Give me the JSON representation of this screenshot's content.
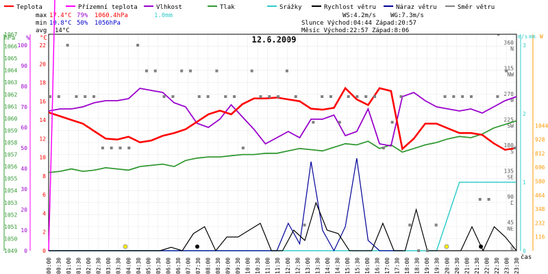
{
  "chart_data": {
    "type": "line",
    "title": "12.6.2009",
    "x_unit_label": "čas",
    "legend": [
      {
        "name": "Teplota",
        "color": "#ff0000"
      },
      {
        "name": "Přízemní teplota",
        "color": "#ff00ff"
      },
      {
        "name": "Vlhkost",
        "color": "#9900cc"
      },
      {
        "name": "Tlak",
        "color": "#339933"
      },
      {
        "name": "Srážky",
        "color": "#33cccc"
      },
      {
        "name": "Rychlost větru",
        "color": "#000000"
      },
      {
        "name": "Náraz větru",
        "color": "#000099"
      },
      {
        "name": "Směr větru",
        "color": "#808080"
      }
    ],
    "stats": {
      "max": {
        "label": "max",
        "temp": "17.4°C",
        "hum": "79%",
        "press": "1060.4hPa",
        "rain": "1.0mm"
      },
      "min": {
        "label": "min",
        "temp": "10.8°C",
        "hum": "50%",
        "press": "1056hPa"
      },
      "avg": {
        "label": "avg",
        "temp": "14°C"
      },
      "ws": "WS:4.2m/s",
      "wg": "WG:7.3m/s",
      "sun": "Slunce Východ:04:44  Západ:20:57",
      "moon": "Měsíc  Východ:22:57  Západ:8:06"
    },
    "axes": {
      "hPa": {
        "label": "hPa",
        "ticks": [
          "1049",
          "1050",
          "1051",
          "1052",
          "1053",
          "1054",
          "1055",
          "1056",
          "1057",
          "1058",
          "1059",
          "1060",
          "1061",
          "1062",
          "1063",
          "1064",
          "1065",
          "1066",
          "1067"
        ]
      },
      "percent": {
        "label": "%",
        "ticks": [
          "0",
          "10",
          "20",
          "30",
          "40",
          "50",
          "60",
          "70",
          "80",
          "90",
          "100"
        ]
      },
      "celsius": {
        "label": "°C",
        "ticks": [
          "0",
          "2",
          "4",
          "6",
          "8",
          "10",
          "12",
          "14",
          "16",
          "18",
          "20",
          "22"
        ]
      },
      "direction": {
        "label": "°",
        "ticks": [
          "0",
          "45 NE",
          "90 E",
          "135 SE",
          "180 S",
          "225 SW",
          "270 W",
          "315 NW",
          "360 N"
        ]
      },
      "ms": {
        "label": "m/s",
        "ticks": [
          "0",
          "1",
          "2",
          "3"
        ]
      },
      "mm": {
        "label": "mm",
        "ticks": [
          "0",
          "1",
          "2",
          "3"
        ]
      },
      "wm2": {
        "label": "W",
        "ticks": [
          "116",
          "232",
          "348",
          "464",
          "580",
          "696",
          "812",
          "928",
          "1044"
        ]
      }
    },
    "x_ticks": [
      "00:00",
      "00:30",
      "01:00",
      "01:30",
      "02:00",
      "02:30",
      "03:00",
      "03:30",
      "04:00",
      "04:30",
      "05:00",
      "05:30",
      "06:00",
      "06:30",
      "07:00",
      "07:30",
      "08:00",
      "08:30",
      "09:00",
      "09:30",
      "10:00",
      "10:30",
      "11:00",
      "11:30",
      "12:00",
      "12:30",
      "13:00",
      "13:30",
      "14:00",
      "14:30",
      "15:00",
      "15:30",
      "16:00",
      "16:30",
      "17:00",
      "17:30",
      "18:00",
      "18:30",
      "19:00",
      "19:30",
      "20:00",
      "20:30",
      "21:00",
      "21:30",
      "22:00",
      "22:30",
      "23:00",
      "23:30"
    ],
    "series_points": {
      "temperature": [
        [
          0,
          14.8
        ],
        [
          1,
          14.4
        ],
        [
          2,
          14.0
        ],
        [
          3,
          13.6
        ],
        [
          4,
          12.8
        ],
        [
          5,
          12.0
        ],
        [
          6,
          11.9
        ],
        [
          7,
          12.2
        ],
        [
          8,
          11.6
        ],
        [
          9,
          11.8
        ],
        [
          10,
          12.3
        ],
        [
          11,
          12.6
        ],
        [
          12,
          13.0
        ],
        [
          13,
          13.8
        ],
        [
          14,
          14.6
        ],
        [
          15,
          15.0
        ],
        [
          16,
          14.6
        ],
        [
          17,
          15.7
        ],
        [
          18,
          16.3
        ],
        [
          19,
          16.3
        ],
        [
          20,
          16.4
        ],
        [
          21,
          16.2
        ],
        [
          22,
          16.0
        ],
        [
          23,
          15.2
        ],
        [
          24,
          15.1
        ],
        [
          25,
          15.3
        ],
        [
          26,
          17.4
        ],
        [
          27,
          16.2
        ],
        [
          28,
          15.6
        ],
        [
          29,
          17.4
        ],
        [
          30,
          17.1
        ],
        [
          31,
          10.9
        ],
        [
          32,
          12.0
        ],
        [
          33,
          13.6
        ],
        [
          34,
          13.6
        ],
        [
          35,
          13.1
        ],
        [
          36,
          12.6
        ],
        [
          37,
          12.6
        ],
        [
          38,
          12.4
        ],
        [
          39,
          11.5
        ],
        [
          40,
          10.8
        ],
        [
          41,
          11.0
        ]
      ],
      "humidity": [
        [
          0,
          68
        ],
        [
          1,
          69
        ],
        [
          2,
          69
        ],
        [
          3,
          70
        ],
        [
          4,
          72
        ],
        [
          5,
          73
        ],
        [
          6,
          73
        ],
        [
          7,
          74
        ],
        [
          8,
          79
        ],
        [
          9,
          78
        ],
        [
          10,
          77
        ],
        [
          11,
          72
        ],
        [
          12,
          70
        ],
        [
          13,
          62
        ],
        [
          14,
          60
        ],
        [
          15,
          64
        ],
        [
          16,
          71
        ],
        [
          17,
          65
        ],
        [
          18,
          59
        ],
        [
          19,
          52
        ],
        [
          20,
          55
        ],
        [
          21,
          58
        ],
        [
          22,
          55
        ],
        [
          23,
          64
        ],
        [
          24,
          64
        ],
        [
          25,
          66
        ],
        [
          26,
          56
        ],
        [
          27,
          58
        ],
        [
          28,
          69
        ],
        [
          29,
          52
        ],
        [
          30,
          51
        ],
        [
          31,
          75
        ],
        [
          32,
          77
        ],
        [
          33,
          73
        ],
        [
          34,
          70
        ],
        [
          35,
          69
        ],
        [
          36,
          68
        ],
        [
          37,
          69
        ],
        [
          38,
          67
        ],
        [
          39,
          70
        ],
        [
          40,
          73
        ],
        [
          41,
          75
        ]
      ],
      "pressure": [
        [
          0,
          1055.5
        ],
        [
          1,
          1055.6
        ],
        [
          2,
          1055.8
        ],
        [
          3,
          1055.6
        ],
        [
          4,
          1055.7
        ],
        [
          5,
          1055.9
        ],
        [
          6,
          1055.8
        ],
        [
          7,
          1055.7
        ],
        [
          8,
          1056.0
        ],
        [
          9,
          1056.1
        ],
        [
          10,
          1056.2
        ],
        [
          11,
          1056.0
        ],
        [
          12,
          1056.5
        ],
        [
          13,
          1056.7
        ],
        [
          14,
          1056.8
        ],
        [
          15,
          1056.8
        ],
        [
          16,
          1056.9
        ],
        [
          17,
          1057.0
        ],
        [
          18,
          1057.0
        ],
        [
          19,
          1057.1
        ],
        [
          20,
          1057.1
        ],
        [
          21,
          1057.3
        ],
        [
          22,
          1057.5
        ],
        [
          23,
          1057.4
        ],
        [
          24,
          1057.3
        ],
        [
          25,
          1057.6
        ],
        [
          26,
          1057.9
        ],
        [
          27,
          1057.8
        ],
        [
          28,
          1058.1
        ],
        [
          29,
          1057.5
        ],
        [
          30,
          1057.8
        ],
        [
          31,
          1057.2
        ],
        [
          32,
          1057.5
        ],
        [
          33,
          1057.8
        ],
        [
          34,
          1058.0
        ],
        [
          35,
          1058.3
        ],
        [
          36,
          1058.5
        ],
        [
          37,
          1058.4
        ],
        [
          38,
          1058.7
        ],
        [
          39,
          1059.2
        ],
        [
          40,
          1059.5
        ],
        [
          41,
          1059.8
        ]
      ],
      "rain": [
        [
          0,
          0
        ],
        [
          34,
          0
        ],
        [
          36,
          1.0
        ],
        [
          41,
          1.0
        ]
      ],
      "wind_speed": [
        [
          0,
          0
        ],
        [
          10,
          0
        ],
        [
          11,
          0.05
        ],
        [
          12,
          0
        ],
        [
          13,
          0.25
        ],
        [
          14,
          0.35
        ],
        [
          15,
          0
        ],
        [
          16,
          0.2
        ],
        [
          17,
          0.2
        ],
        [
          18,
          0.3
        ],
        [
          19,
          0.4
        ],
        [
          20,
          0
        ],
        [
          21,
          0
        ],
        [
          22,
          0.3
        ],
        [
          23,
          0.15
        ],
        [
          24,
          0.7
        ],
        [
          25,
          0.3
        ],
        [
          26,
          0.25
        ],
        [
          27,
          0
        ],
        [
          28,
          0
        ],
        [
          29,
          0
        ],
        [
          30,
          0.4
        ],
        [
          31,
          0
        ],
        [
          32,
          0
        ],
        [
          33,
          0.6
        ],
        [
          34,
          0
        ],
        [
          35,
          0
        ],
        [
          36,
          0
        ],
        [
          37,
          0
        ],
        [
          38,
          0.35
        ],
        [
          39,
          0
        ],
        [
          40,
          0.35
        ],
        [
          41,
          0.2
        ],
        [
          42,
          0
        ]
      ],
      "wind_gust": [
        [
          0,
          0
        ],
        [
          20,
          0
        ],
        [
          21,
          0.4
        ],
        [
          22,
          0.1
        ],
        [
          23,
          1.3
        ],
        [
          24,
          0.3
        ],
        [
          25,
          0
        ],
        [
          26,
          0.35
        ],
        [
          27,
          1.35
        ],
        [
          28,
          0.15
        ],
        [
          29,
          0
        ],
        [
          30,
          0
        ],
        [
          31,
          0
        ]
      ],
      "wind_direction_dots": [
        270,
        270,
        360,
        270,
        270,
        270,
        180,
        180,
        180,
        180,
        360,
        315,
        315,
        270,
        270,
        315,
        315,
        270,
        270,
        315,
        270,
        270,
        180,
        315,
        270,
        270,
        270,
        315,
        270,
        45,
        225,
        270,
        270,
        225,
        270,
        270,
        270,
        270,
        180,
        225,
        270,
        45,
        0,
        0,
        45,
        270,
        270,
        270,
        270,
        90,
        90,
        270,
        315,
        180
      ]
    }
  }
}
